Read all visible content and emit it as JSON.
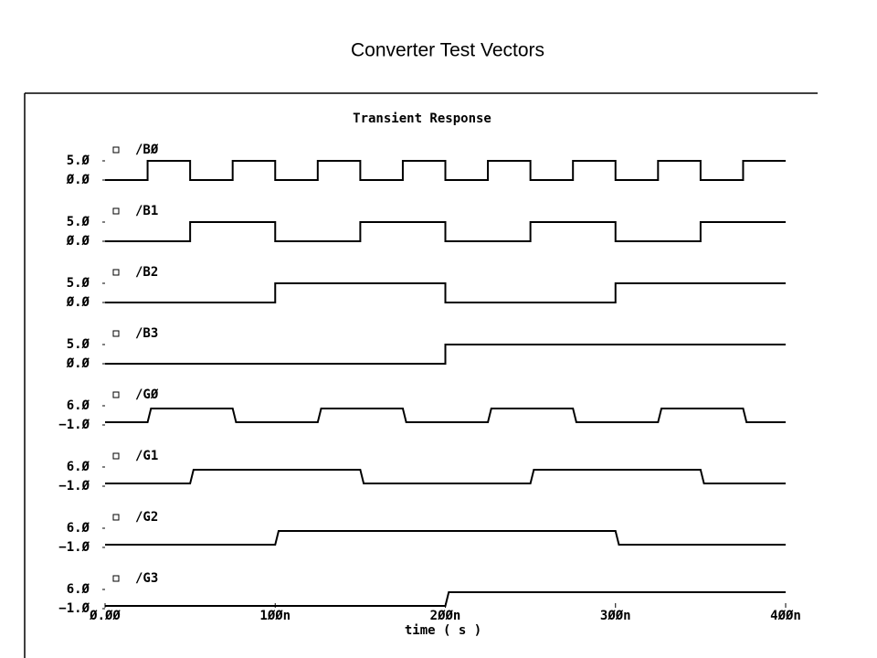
{
  "title": "Converter Test Vectors",
  "chart_data": {
    "type": "line",
    "title": "Transient Response",
    "xlabel": "time ( s )",
    "xlim": [
      0,
      4e-07
    ],
    "xticks": [
      {
        "value": 0,
        "label": "Ø.ØØ"
      },
      {
        "value": 1e-07,
        "label": "1ØØn"
      },
      {
        "value": 2e-07,
        "label": "2ØØn"
      },
      {
        "value": 3e-07,
        "label": "3ØØn"
      },
      {
        "value": 4e-07,
        "label": "4ØØn"
      }
    ],
    "series": [
      {
        "name": "/BØ",
        "color": "#000000",
        "ylim": [
          0,
          5
        ],
        "yticks": [
          {
            "value": 5,
            "label": "5.Ø"
          },
          {
            "value": 0,
            "label": "Ø.Ø"
          }
        ],
        "x": [
          0,
          2.5e-08,
          2.5e-08,
          5e-08,
          5e-08,
          7.5e-08,
          7.5e-08,
          1e-07,
          1e-07,
          1.25e-07,
          1.25e-07,
          1.5e-07,
          1.5e-07,
          1.75e-07,
          1.75e-07,
          2e-07,
          2e-07,
          2.25e-07,
          2.25e-07,
          2.5e-07,
          2.5e-07,
          2.75e-07,
          2.75e-07,
          3e-07,
          3e-07,
          3.25e-07,
          3.25e-07,
          3.5e-07,
          3.5e-07,
          3.75e-07,
          3.75e-07,
          4e-07
        ],
        "values": [
          0,
          0,
          5,
          5,
          0,
          0,
          5,
          5,
          0,
          0,
          5,
          5,
          0,
          0,
          5,
          5,
          0,
          0,
          5,
          5,
          0,
          0,
          5,
          5,
          0,
          0,
          5,
          5,
          0,
          0,
          5,
          5
        ]
      },
      {
        "name": "/B1",
        "color": "#000000",
        "ylim": [
          0,
          5
        ],
        "yticks": [
          {
            "value": 5,
            "label": "5.Ø"
          },
          {
            "value": 0,
            "label": "Ø.Ø"
          }
        ],
        "x": [
          0,
          5e-08,
          5e-08,
          1e-07,
          1e-07,
          1.5e-07,
          1.5e-07,
          2e-07,
          2e-07,
          2.5e-07,
          2.5e-07,
          3e-07,
          3e-07,
          3.5e-07,
          3.5e-07,
          4e-07
        ],
        "values": [
          0,
          0,
          5,
          5,
          0,
          0,
          5,
          5,
          0,
          0,
          5,
          5,
          0,
          0,
          5,
          5
        ]
      },
      {
        "name": "/B2",
        "color": "#000000",
        "ylim": [
          0,
          5
        ],
        "yticks": [
          {
            "value": 5,
            "label": "5.Ø"
          },
          {
            "value": 0,
            "label": "Ø.Ø"
          }
        ],
        "x": [
          0,
          1e-07,
          1e-07,
          2e-07,
          2e-07,
          3e-07,
          3e-07,
          4e-07
        ],
        "values": [
          0,
          0,
          5,
          5,
          0,
          0,
          5,
          5
        ]
      },
      {
        "name": "/B3",
        "color": "#000000",
        "ylim": [
          0,
          5
        ],
        "yticks": [
          {
            "value": 5,
            "label": "5.Ø"
          },
          {
            "value": 0,
            "label": "Ø.Ø"
          }
        ],
        "x": [
          0,
          2e-07,
          2e-07,
          4e-07
        ],
        "values": [
          0,
          0,
          5,
          5
        ]
      },
      {
        "name": "/GØ",
        "color": "#000000",
        "ylim": [
          -1,
          6
        ],
        "yticks": [
          {
            "value": 6,
            "label": "6.Ø"
          },
          {
            "value": -1,
            "label": "−1.Ø"
          }
        ],
        "x": [
          0,
          2.5e-08,
          2.7e-08,
          7.5e-08,
          7.7e-08,
          1.25e-07,
          1.27e-07,
          1.75e-07,
          1.77e-07,
          2.25e-07,
          2.27e-07,
          2.75e-07,
          2.77e-07,
          3.25e-07,
          3.27e-07,
          3.75e-07,
          3.77e-07,
          4e-07
        ],
        "values": [
          0,
          0,
          5,
          5,
          0,
          0,
          5,
          5,
          0,
          0,
          5,
          5,
          0,
          0,
          5,
          5,
          0,
          0
        ]
      },
      {
        "name": "/G1",
        "color": "#000000",
        "ylim": [
          -1,
          6
        ],
        "yticks": [
          {
            "value": 6,
            "label": "6.Ø"
          },
          {
            "value": -1,
            "label": "−1.Ø"
          }
        ],
        "x": [
          0,
          5e-08,
          5.2e-08,
          1.5e-07,
          1.52e-07,
          2.5e-07,
          2.52e-07,
          3.5e-07,
          3.52e-07,
          4e-07
        ],
        "values": [
          0,
          0,
          5,
          5,
          0,
          0,
          5,
          5,
          0,
          0
        ]
      },
      {
        "name": "/G2",
        "color": "#000000",
        "ylim": [
          -1,
          6
        ],
        "yticks": [
          {
            "value": 6,
            "label": "6.Ø"
          },
          {
            "value": -1,
            "label": "−1.Ø"
          }
        ],
        "x": [
          0,
          1e-07,
          1.02e-07,
          3e-07,
          3.02e-07,
          4e-07
        ],
        "values": [
          0,
          0,
          5,
          5,
          0,
          0
        ]
      },
      {
        "name": "/G3",
        "color": "#000000",
        "ylim": [
          -1,
          6
        ],
        "yticks": [
          {
            "value": 6,
            "label": "6.Ø"
          },
          {
            "value": -1,
            "label": "−1.Ø"
          }
        ],
        "x": [
          0,
          2e-07,
          2.02e-07,
          4e-07
        ],
        "values": [
          0,
          0,
          5,
          5
        ]
      }
    ]
  }
}
